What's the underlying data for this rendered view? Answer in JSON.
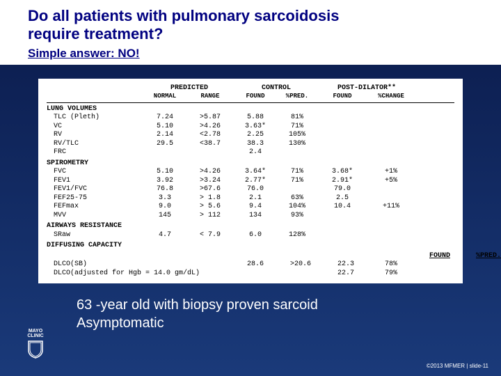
{
  "title_line1": "Do all patients with pulmonary sarcoidosis",
  "title_line2": "require treatment?",
  "subtitle": "Simple answer: NO!",
  "caption_line1": "63 -year old with biopsy proven sarcoid",
  "caption_line2": "Asymptomatic",
  "logo_text1": "MAYO",
  "logo_text2": "CLINIC",
  "footer": "©2013 MFMER | slide-11",
  "group_headers": [
    "",
    "PREDICTED",
    "CONTROL",
    "POST-DILATOR**"
  ],
  "sub_headers": [
    "",
    "NORMAL",
    "RANGE",
    "FOUND",
    "%PRED.",
    "FOUND",
    "%CHANGE"
  ],
  "sections": {
    "lung_volumes": {
      "label": "LUNG VOLUMES",
      "rows": [
        {
          "label": "TLC (Pleth)",
          "normal": "7.24",
          "range": ">5.87",
          "found": "5.88",
          "pred": "81%",
          "pfound": "",
          "pchange": ""
        },
        {
          "label": "VC",
          "normal": "5.10",
          "range": ">4.26",
          "found": "3.63*",
          "pred": "71%",
          "pfound": "",
          "pchange": ""
        },
        {
          "label": "RV",
          "normal": "2.14",
          "range": "<2.78",
          "found": "2.25",
          "pred": "105%",
          "pfound": "",
          "pchange": ""
        },
        {
          "label": "RV/TLC",
          "normal": "29.5",
          "range": "<38.7",
          "found": "38.3",
          "pred": "130%",
          "pfound": "",
          "pchange": ""
        },
        {
          "label": "FRC",
          "normal": "",
          "range": "",
          "found": "2.4",
          "pred": "",
          "pfound": "",
          "pchange": ""
        }
      ]
    },
    "spirometry": {
      "label": "SPIROMETRY",
      "rows": [
        {
          "label": "FVC",
          "normal": "5.10",
          "range": ">4.26",
          "found": "3.64*",
          "pred": "71%",
          "pfound": "3.68*",
          "pchange": "+1%"
        },
        {
          "label": "FEV1",
          "normal": "3.92",
          "range": ">3.24",
          "found": "2.77*",
          "pred": "71%",
          "pfound": "2.91*",
          "pchange": "+5%"
        },
        {
          "label": "FEV1/FVC",
          "normal": "76.8",
          "range": ">67.6",
          "found": "76.0",
          "pred": "",
          "pfound": "79.0",
          "pchange": ""
        },
        {
          "label": "FEF25-75",
          "normal": "3.3",
          "range": "> 1.8",
          "found": "2.1",
          "pred": "63%",
          "pfound": "2.5",
          "pchange": ""
        },
        {
          "label": "FEFmax",
          "normal": "9.0",
          "range": "> 5.6",
          "found": "9.4",
          "pred": "104%",
          "pfound": "10.4",
          "pchange": "+11%"
        },
        {
          "label": "MVV",
          "normal": "145",
          "range": "> 112",
          "found": "134",
          "pred": "93%",
          "pfound": "",
          "pchange": ""
        }
      ]
    },
    "airways": {
      "label": "AIRWAYS RESISTANCE",
      "rows": [
        {
          "label": "SRaw",
          "normal": "4.7",
          "range": "< 7.9",
          "found": "6.0",
          "pred": "128%",
          "pfound": "",
          "pchange": ""
        }
      ]
    },
    "diffusing": {
      "label": "DIFFUSING CAPACITY",
      "header": [
        "",
        "FOUND",
        "%PRED."
      ],
      "rows": [
        {
          "label": "DLCO(SB)",
          "normal": "28.6",
          "range": ">20.6",
          "found": "",
          "pred": "",
          "pfound": "22.3",
          "pchange": "78%"
        },
        {
          "label": "DLCO(adjusted for Hgb = 14.0 gm/dL)",
          "normal": "",
          "range": "",
          "found": "",
          "pred": "",
          "pfound": "22.7",
          "pchange": "79%"
        }
      ]
    }
  }
}
